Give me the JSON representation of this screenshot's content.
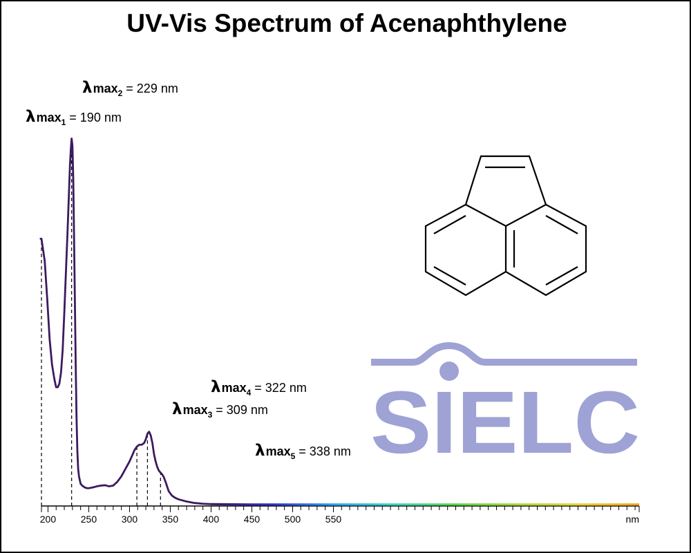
{
  "chart_data": {
    "type": "line",
    "title": "UV-Vis Spectrum of Acenaphthylene",
    "xlabel": "nm",
    "ylabel": "",
    "xlim": [
      192,
      925
    ],
    "ylim": [
      0,
      1.0
    ],
    "x_ticks_labeled": [
      200,
      250,
      300,
      350,
      400,
      450,
      500,
      550
    ],
    "x_minor_step": 10,
    "grid": false,
    "legend": "none",
    "series": [
      {
        "color": "#3b1a5e",
        "x": [
          190,
          192,
          196,
          199,
          202,
          205,
          208,
          210,
          212,
          214,
          216,
          218,
          220,
          222,
          224,
          226,
          227,
          228,
          229,
          230,
          231,
          232,
          233,
          234,
          235,
          236,
          237,
          238,
          240,
          242,
          245,
          248,
          250,
          255,
          260,
          265,
          270,
          275,
          280,
          285,
          290,
          295,
          300,
          303,
          306,
          309,
          312,
          315,
          318,
          320,
          322,
          324,
          326,
          328,
          330,
          332,
          334,
          336,
          338,
          340,
          342,
          345,
          348,
          352,
          356,
          360,
          365,
          370,
          380,
          390,
          400,
          450,
          500,
          550,
          600,
          650,
          700,
          750,
          800,
          850,
          900,
          925
        ],
        "y": [
          0.72,
          0.72,
          0.66,
          0.56,
          0.45,
          0.38,
          0.34,
          0.32,
          0.32,
          0.33,
          0.36,
          0.42,
          0.52,
          0.63,
          0.74,
          0.86,
          0.92,
          0.96,
          0.99,
          0.97,
          0.88,
          0.72,
          0.55,
          0.38,
          0.24,
          0.15,
          0.1,
          0.08,
          0.06,
          0.055,
          0.05,
          0.048,
          0.048,
          0.05,
          0.053,
          0.055,
          0.056,
          0.053,
          0.055,
          0.065,
          0.08,
          0.1,
          0.12,
          0.135,
          0.15,
          0.16,
          0.165,
          0.165,
          0.17,
          0.18,
          0.195,
          0.2,
          0.19,
          0.17,
          0.14,
          0.12,
          0.105,
          0.095,
          0.09,
          0.085,
          0.078,
          0.06,
          0.04,
          0.028,
          0.022,
          0.018,
          0.015,
          0.012,
          0.008,
          0.006,
          0.005,
          0.004,
          0.004,
          0.004,
          0.004,
          0.004,
          0.004,
          0.004,
          0.004,
          0.004,
          0.004,
          0.004
        ]
      }
    ],
    "peaks": [
      {
        "index": "1",
        "nm": 190,
        "label": "= 190 nm"
      },
      {
        "index": "2",
        "nm": 229,
        "label": "= 229 nm"
      },
      {
        "index": "3",
        "nm": 309,
        "label": "= 309 nm"
      },
      {
        "index": "4",
        "nm": 322,
        "label": "= 322 nm"
      },
      {
        "index": "5",
        "nm": 338,
        "label": "= 338 nm"
      }
    ],
    "lambda_symbol": "λ",
    "max_text": "max",
    "spectrum_colors": [
      "#3b1a5e",
      "#2f2fc8",
      "#2fa0f0",
      "#39d2c0",
      "#5ad24a",
      "#a6d63a",
      "#e8d03a",
      "#f0a020"
    ]
  },
  "logo": {
    "text": "SIELC",
    "color": "#9fa2d4"
  },
  "molecule": {
    "name": "acenaphthylene-structure"
  }
}
